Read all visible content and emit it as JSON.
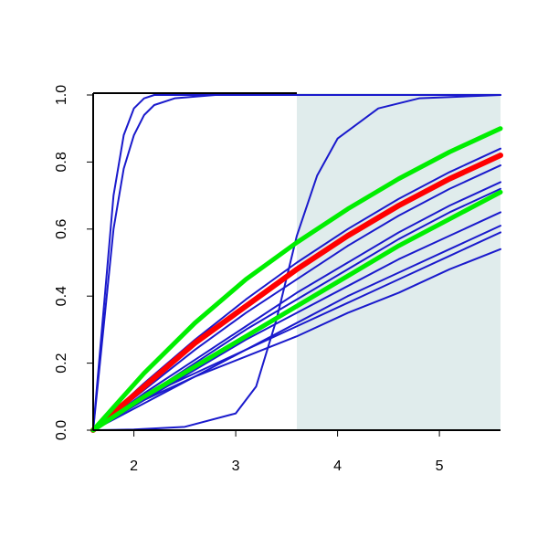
{
  "chart_data": {
    "type": "line",
    "xlim": [
      1.6,
      5.6
    ],
    "ylim": [
      0,
      1
    ],
    "xticks": [
      2,
      3,
      4,
      5
    ],
    "yticks": [
      {
        "value": 0,
        "label": "0.0"
      },
      {
        "value": 0.2,
        "label": "0.2"
      },
      {
        "value": 0.4,
        "label": "0.4"
      },
      {
        "value": 0.6,
        "label": "0.6"
      },
      {
        "value": 0.8,
        "label": "0.8"
      },
      {
        "value": 1,
        "label": "1.0"
      }
    ],
    "shaded_region": {
      "x": [
        3.6,
        5.6
      ],
      "color": "#e0ecec"
    },
    "series": [
      {
        "color": "#1a1acc",
        "width": 2,
        "x": [
          1.6,
          1.7,
          1.8,
          1.9,
          2.0,
          2.1,
          2.2,
          2.4,
          2.8,
          5.6
        ],
        "values": [
          0,
          0.35,
          0.7,
          0.88,
          0.96,
          0.99,
          1,
          1,
          1,
          1
        ]
      },
      {
        "color": "#1a1acc",
        "width": 2,
        "x": [
          1.6,
          1.7,
          1.8,
          1.9,
          2.0,
          2.1,
          2.2,
          2.4,
          2.8,
          5.6
        ],
        "values": [
          0,
          0.3,
          0.6,
          0.78,
          0.88,
          0.94,
          0.97,
          0.99,
          1,
          1
        ]
      },
      {
        "color": "#1a1acc",
        "width": 2,
        "x": [
          1.6,
          2.0,
          2.5,
          3.0,
          3.2,
          3.4,
          3.6,
          3.8,
          4.0,
          4.4,
          4.8,
          5.6
        ],
        "values": [
          0,
          0.002,
          0.01,
          0.05,
          0.13,
          0.33,
          0.58,
          0.76,
          0.87,
          0.96,
          0.99,
          1
        ]
      },
      {
        "color": "#1a1acc",
        "width": 2,
        "x": [
          1.6,
          2.1,
          2.6,
          3.1,
          3.6,
          4.1,
          4.6,
          5.1,
          5.6
        ],
        "values": [
          0,
          0.14,
          0.27,
          0.39,
          0.5,
          0.6,
          0.69,
          0.77,
          0.84
        ]
      },
      {
        "color": "#1a1acc",
        "width": 2,
        "x": [
          1.6,
          2.1,
          2.6,
          3.1,
          3.6,
          4.1,
          4.6,
          5.1,
          5.6
        ],
        "values": [
          0,
          0.12,
          0.24,
          0.35,
          0.45,
          0.55,
          0.64,
          0.72,
          0.79
        ]
      },
      {
        "color": "#1a1acc",
        "width": 2,
        "x": [
          1.6,
          2.1,
          2.6,
          3.1,
          3.6,
          4.1,
          4.6,
          5.1,
          5.6
        ],
        "values": [
          0,
          0.11,
          0.21,
          0.31,
          0.41,
          0.5,
          0.59,
          0.67,
          0.74
        ]
      },
      {
        "color": "#1a1acc",
        "width": 2,
        "x": [
          1.6,
          2.1,
          2.6,
          3.1,
          3.6,
          4.1,
          4.6,
          5.1,
          5.6
        ],
        "values": [
          0,
          0.1,
          0.2,
          0.3,
          0.39,
          0.48,
          0.57,
          0.65,
          0.72
        ]
      },
      {
        "color": "#1a1acc",
        "width": 2,
        "x": [
          1.6,
          2.1,
          2.6,
          3.1,
          3.6,
          4.1,
          4.6,
          5.1,
          5.6
        ],
        "values": [
          0,
          0.09,
          0.18,
          0.27,
          0.35,
          0.43,
          0.51,
          0.58,
          0.65
        ]
      },
      {
        "color": "#1a1acc",
        "width": 2,
        "x": [
          1.6,
          2.1,
          2.6,
          3.1,
          3.6,
          4.1,
          4.6,
          5.1,
          5.6
        ],
        "values": [
          0,
          0.08,
          0.16,
          0.24,
          0.32,
          0.4,
          0.47,
          0.54,
          0.61
        ]
      },
      {
        "color": "#1a1acc",
        "width": 2,
        "x": [
          1.6,
          2.1,
          2.6,
          3.1,
          3.6,
          4.1,
          4.6,
          5.1,
          5.6
        ],
        "values": [
          0,
          0.1,
          0.17,
          0.24,
          0.31,
          0.38,
          0.45,
          0.52,
          0.59
        ]
      },
      {
        "color": "#1a1acc",
        "width": 2,
        "x": [
          1.6,
          2.1,
          2.6,
          3.1,
          3.6,
          4.1,
          4.6,
          5.1,
          5.6
        ],
        "values": [
          0,
          0.09,
          0.16,
          0.22,
          0.28,
          0.35,
          0.41,
          0.48,
          0.54
        ]
      },
      {
        "color": "#ff0000",
        "width": 6,
        "x": [
          1.6,
          2.1,
          2.6,
          3.1,
          3.6,
          4.1,
          4.6,
          5.1,
          5.6
        ],
        "values": [
          0,
          0.13,
          0.26,
          0.37,
          0.48,
          0.58,
          0.67,
          0.75,
          0.82
        ]
      },
      {
        "color": "#00ee00",
        "width": 5,
        "x": [
          1.6,
          2.1,
          2.6,
          3.1,
          3.6,
          4.1,
          4.6,
          5.1,
          5.6
        ],
        "values": [
          0,
          0.17,
          0.32,
          0.45,
          0.56,
          0.66,
          0.75,
          0.83,
          0.9
        ]
      },
      {
        "color": "#00ee00",
        "width": 5,
        "x": [
          1.6,
          2.1,
          2.6,
          3.1,
          3.6,
          4.1,
          4.6,
          5.1,
          5.6
        ],
        "values": [
          0,
          0.1,
          0.19,
          0.28,
          0.37,
          0.46,
          0.55,
          0.63,
          0.71
        ]
      }
    ]
  }
}
